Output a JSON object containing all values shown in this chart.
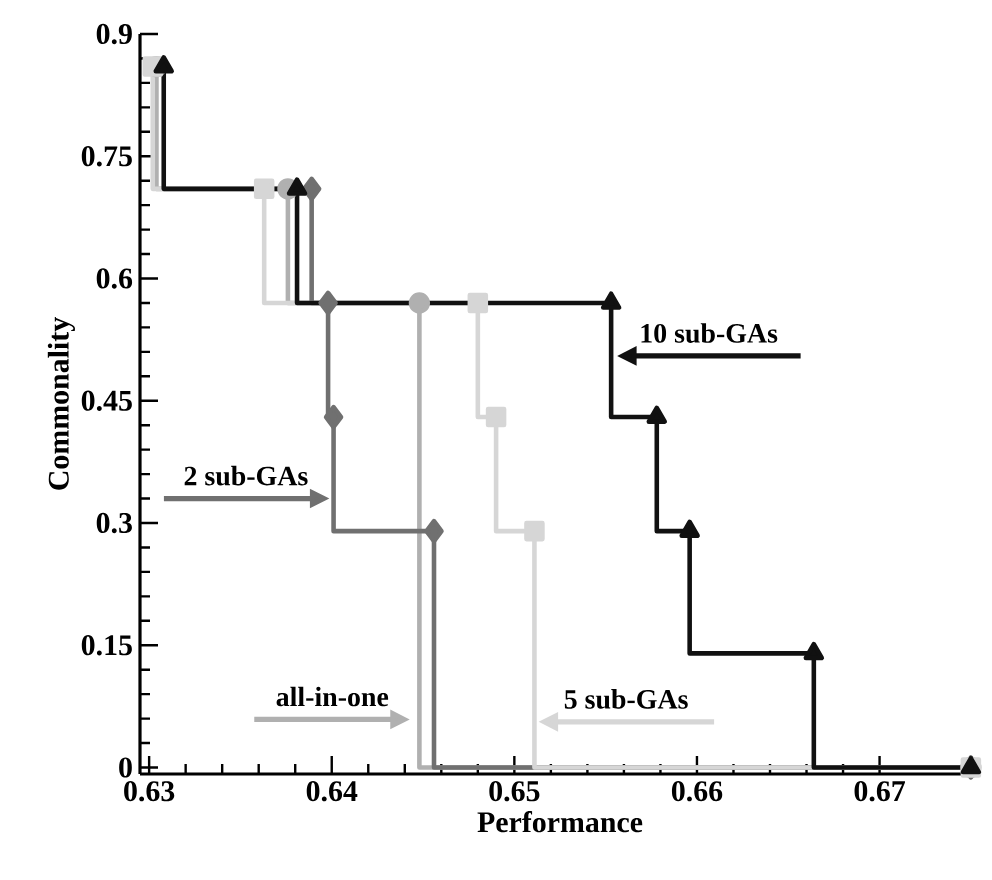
{
  "chart_data": {
    "type": "step",
    "xlabel": "Performance",
    "ylabel": "Commonality",
    "xlim": [
      0.6295,
      0.6755
    ],
    "ylim": [
      -0.008,
      0.9
    ],
    "xticks": [
      0.63,
      0.64,
      0.65,
      0.66,
      0.67
    ],
    "yticks": [
      0,
      0.15,
      0.3,
      0.45,
      0.6,
      0.75,
      0.9
    ],
    "series": [
      {
        "color": "#b0b0b0",
        "marker": "circle",
        "x": [
          0.6304,
          0.6376,
          0.6448,
          0.675
        ],
        "values": [
          0.86,
          0.71,
          0.57,
          0
        ]
      },
      {
        "color": "#707070",
        "marker": "diamond",
        "x": [
          0.6389,
          0.6398,
          0.6401,
          0.6456,
          0.675
        ],
        "values": [
          0.71,
          0.57,
          0.43,
          0.29,
          0
        ]
      },
      {
        "color": "#d6d6d6",
        "marker": "square",
        "x": [
          0.6302,
          0.6363,
          0.648,
          0.649,
          0.6511,
          0.675
        ],
        "values": [
          0.86,
          0.71,
          0.57,
          0.43,
          0.29,
          0
        ]
      },
      {
        "color": "#111111",
        "marker": "triangle",
        "x": [
          0.6308,
          0.6381,
          0.6553,
          0.6578,
          0.6596,
          0.6664,
          0.675
        ],
        "values": [
          0.86,
          0.71,
          0.57,
          0.43,
          0.29,
          0.14,
          0
        ]
      }
    ],
    "annotations": [
      {
        "text": "all-in-one",
        "x": 0.6443,
        "y": 0.059
      },
      {
        "text": "2 sub-GAs",
        "x": 0.6399,
        "y": 0.33
      },
      {
        "text": "5 sub-GAs",
        "x": 0.6513,
        "y": 0.056
      },
      {
        "text": "10 sub-GAs",
        "x": 0.6556,
        "y": 0.505
      }
    ]
  }
}
